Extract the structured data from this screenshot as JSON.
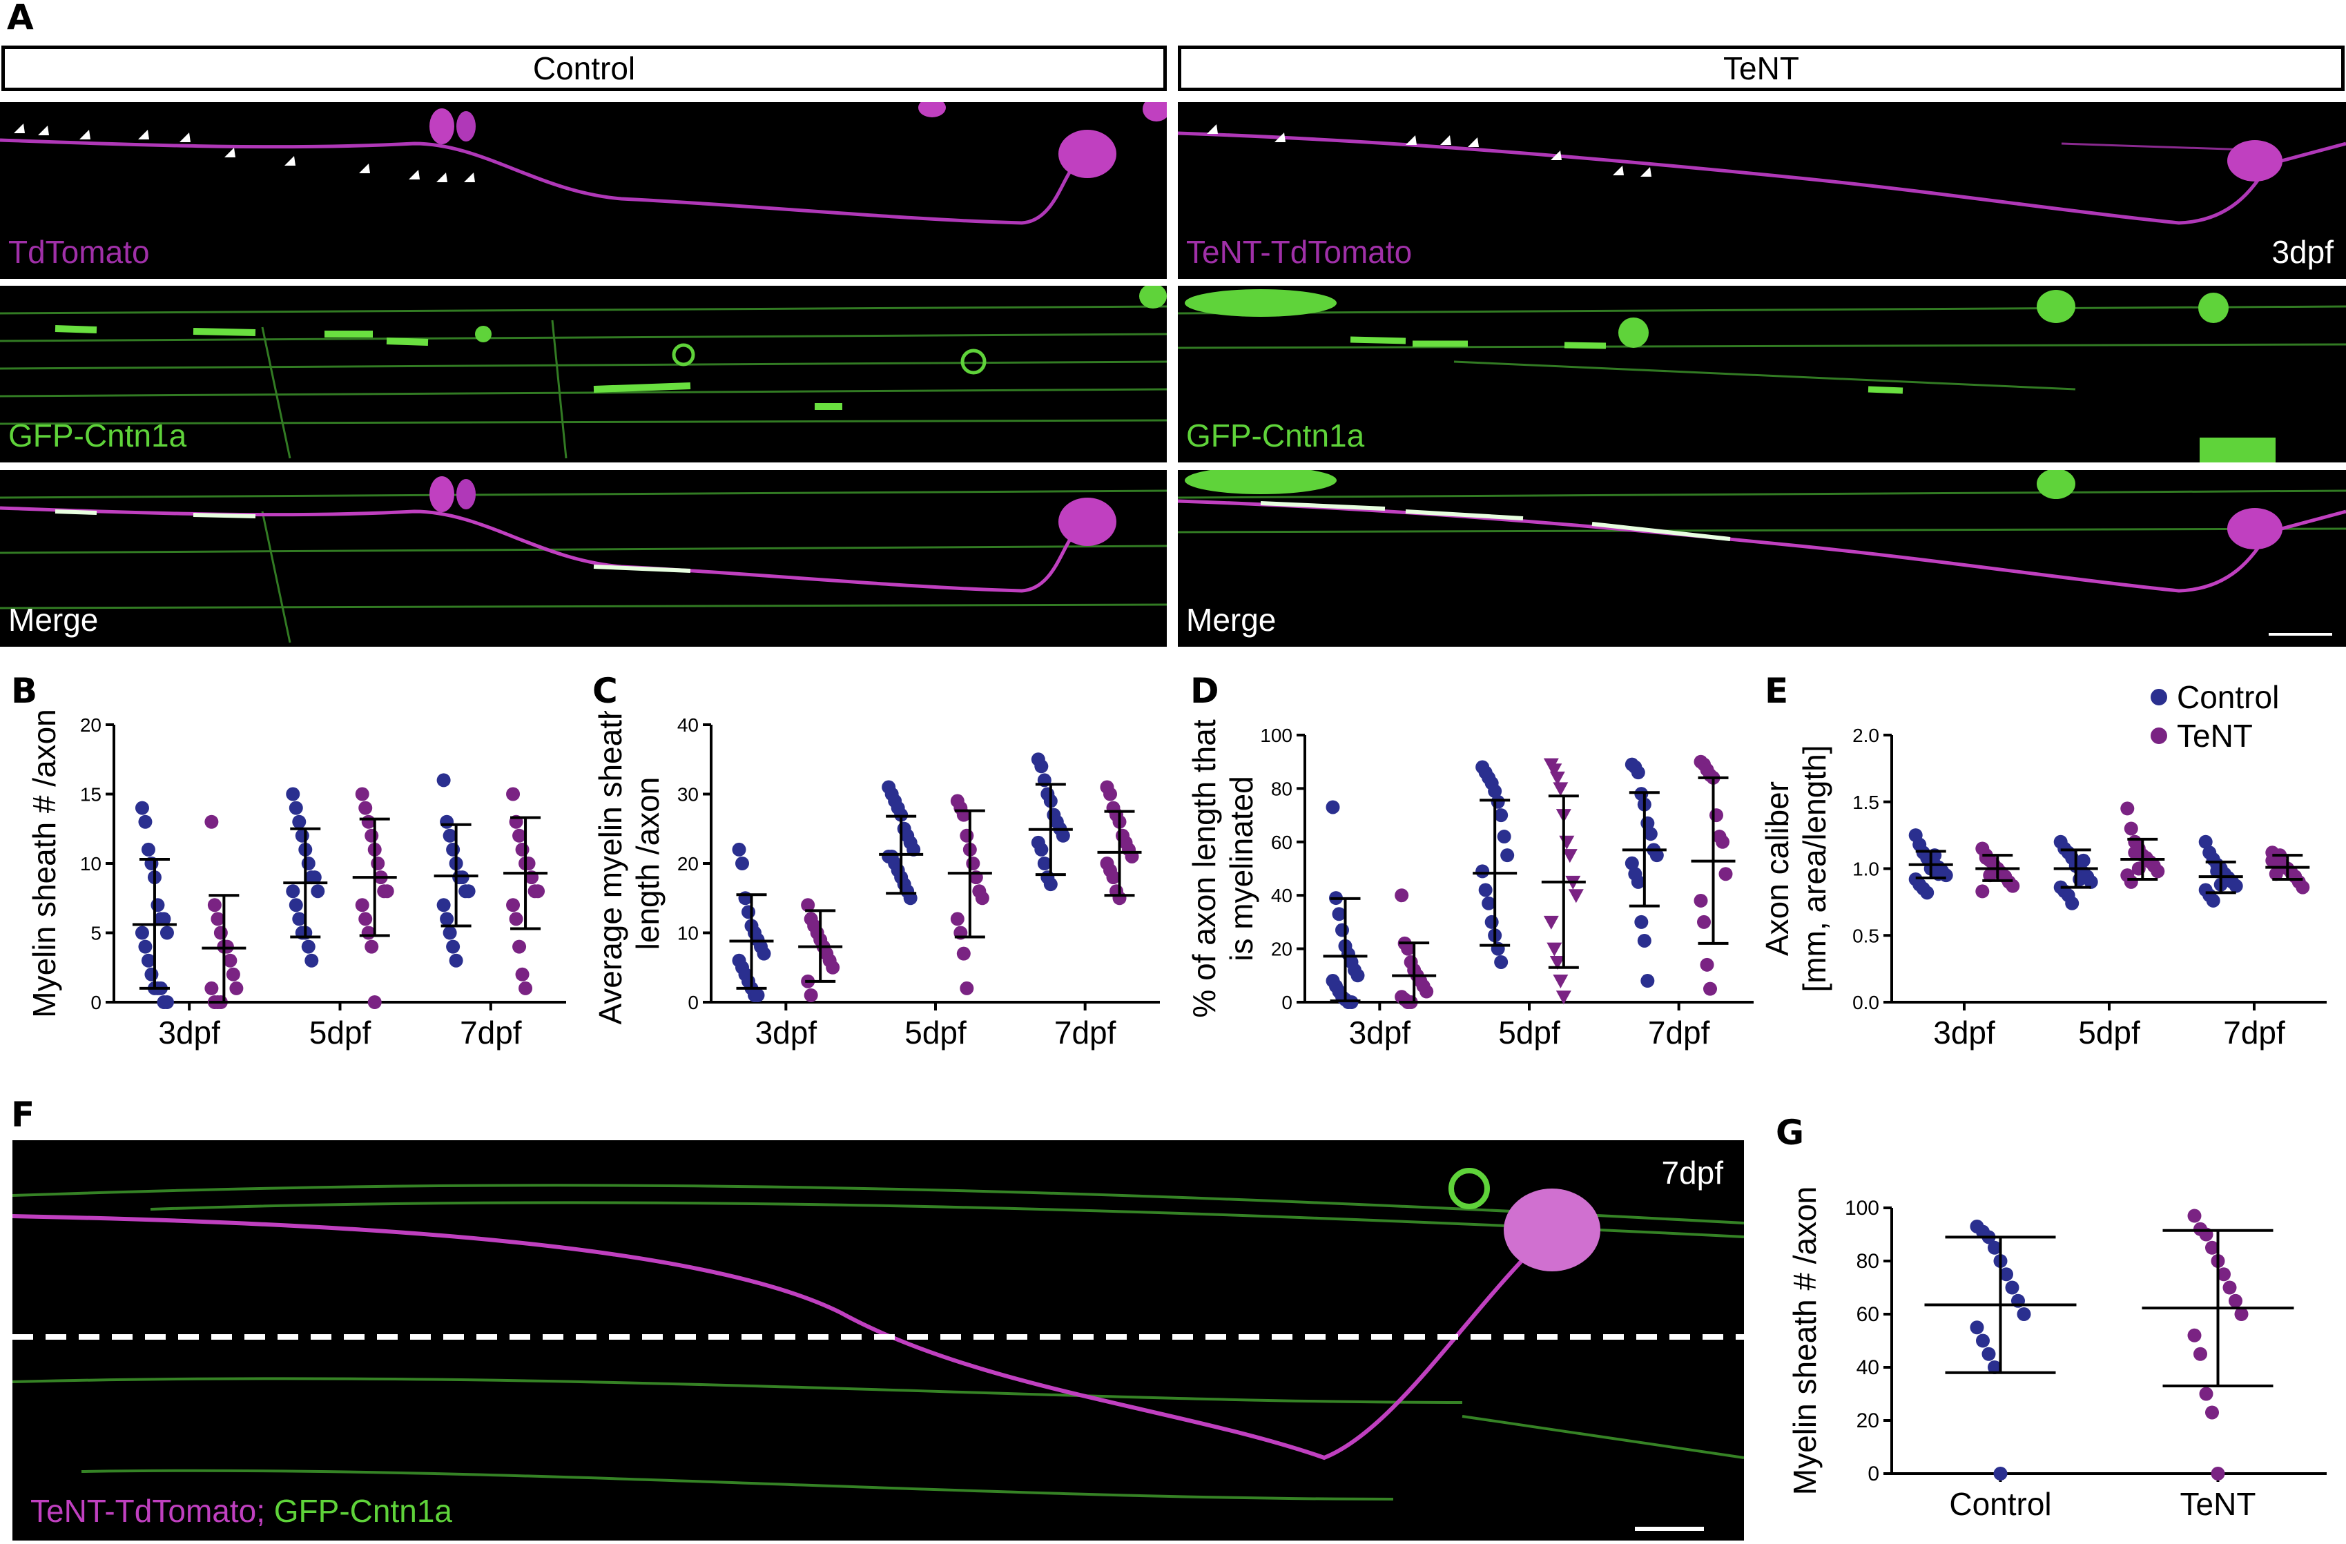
{
  "panels": {
    "A": "A",
    "B": "B",
    "C": "C",
    "D": "D",
    "E": "E",
    "F": "F",
    "G": "G"
  },
  "panelA": {
    "headers": {
      "control": "Control",
      "tent": "TeNT"
    },
    "labels": {
      "tdtomato": "TdTomato",
      "tent_tdtomato": "TeNT-TdTomato",
      "gfp": "GFP-Cntn1a",
      "merge": "Merge",
      "age": "3dpf"
    }
  },
  "panelF": {
    "age": "7dpf",
    "label_tent": "TeNT-TdTomato;",
    "label_gfp": "GFP-Cntn1a"
  },
  "legend": {
    "control": "Control",
    "tent": "TeNT"
  },
  "colors": {
    "control": "#2a2f8f",
    "tent": "#7a2383",
    "magenta": "#c040c0",
    "green": "#5fd33a"
  },
  "chart_data": [
    {
      "id": "B",
      "type": "scatter",
      "ylabel": "Myelin sheath # /axon",
      "yticks": [
        "0",
        "5",
        "10",
        "15",
        "20"
      ],
      "ylim": [
        0,
        20
      ],
      "categories": [
        "3dpf",
        "5dpf",
        "7dpf"
      ],
      "series": [
        {
          "name": "Control",
          "groups": [
            {
              "mean": 5.6,
              "low": 1.0,
              "high": 10.3,
              "points": [
                14,
                13,
                11,
                10,
                9,
                7,
                6,
                6,
                5,
                5,
                4,
                3,
                2,
                1,
                1,
                1,
                0,
                0
              ]
            },
            {
              "mean": 8.6,
              "low": 4.7,
              "high": 12.5,
              "points": [
                15,
                14,
                13,
                12,
                11,
                10,
                9,
                9,
                8,
                8,
                7,
                6,
                5,
                5,
                4,
                3
              ]
            },
            {
              "mean": 9.1,
              "low": 5.5,
              "high": 12.8,
              "points": [
                16,
                13,
                12,
                11,
                10,
                9,
                9,
                8,
                8,
                7,
                6,
                5,
                4,
                3
              ]
            }
          ]
        },
        {
          "name": "TeNT",
          "groups": [
            {
              "mean": 3.9,
              "low": 0.0,
              "high": 7.7,
              "points": [
                13,
                7,
                6,
                5,
                4,
                4,
                3,
                2,
                1,
                1,
                0,
                0,
                0
              ]
            },
            {
              "mean": 9.0,
              "low": 4.8,
              "high": 13.2,
              "points": [
                15,
                14,
                13,
                12,
                11,
                10,
                9,
                8,
                8,
                7,
                6,
                5,
                4,
                0
              ]
            },
            {
              "mean": 9.3,
              "low": 5.3,
              "high": 13.3,
              "points": [
                15,
                13,
                12,
                11,
                10,
                10,
                9,
                8,
                8,
                7,
                6,
                4,
                2,
                1
              ]
            }
          ]
        }
      ]
    },
    {
      "id": "C",
      "type": "scatter",
      "ylabel": [
        "Average myelin sheath",
        "length /axon"
      ],
      "yticks": [
        "0",
        "10",
        "20",
        "30",
        "40"
      ],
      "ylim": [
        0,
        40
      ],
      "categories": [
        "3dpf",
        "5dpf",
        "7dpf"
      ],
      "series": [
        {
          "name": "Control",
          "groups": [
            {
              "mean": 8.8,
              "low": 2.0,
              "high": 15.5,
              "points": [
                22,
                20,
                15,
                13,
                11,
                10,
                9,
                8,
                7,
                6,
                5,
                4,
                3,
                2,
                1,
                1
              ]
            },
            {
              "mean": 21.3,
              "low": 15.7,
              "high": 26.8,
              "points": [
                31,
                30,
                29,
                28,
                27,
                25,
                24,
                23,
                22,
                21,
                21,
                20,
                19,
                18,
                17,
                16,
                15
              ]
            },
            {
              "mean": 24.9,
              "low": 18.4,
              "high": 31.4,
              "points": [
                35,
                34,
                32,
                30,
                29,
                27,
                26,
                25,
                24,
                23,
                22,
                20,
                18,
                17
              ]
            }
          ]
        },
        {
          "name": "TeNT",
          "groups": [
            {
              "mean": 8.0,
              "low": 3.0,
              "high": 13.2,
              "points": [
                14,
                12,
                11,
                10,
                9,
                8,
                7,
                6,
                5,
                3,
                1
              ]
            },
            {
              "mean": 18.6,
              "low": 9.4,
              "high": 27.6,
              "points": [
                29,
                28,
                27,
                24,
                22,
                20,
                18,
                16,
                15,
                12,
                10,
                7,
                2
              ]
            },
            {
              "mean": 21.6,
              "low": 15.4,
              "high": 27.5,
              "points": [
                31,
                30,
                28,
                27,
                26,
                24,
                23,
                22,
                21,
                20,
                19,
                18,
                16,
                15
              ]
            }
          ]
        }
      ]
    },
    {
      "id": "D",
      "type": "scatter",
      "ylabel": [
        "% of axon length that",
        "is myelinated"
      ],
      "yticks": [
        "0",
        "20",
        "40",
        "60",
        "80",
        "100"
      ],
      "ylim": [
        0,
        100
      ],
      "categories": [
        "3dpf",
        "5dpf",
        "7dpf"
      ],
      "series": [
        {
          "name": "Control",
          "groups": [
            {
              "mean": 17.2,
              "low": 0.5,
              "high": 38.8,
              "points": [
                73,
                39,
                33,
                27,
                21,
                18,
                15,
                12,
                10,
                8,
                6,
                4,
                2,
                1,
                0,
                0
              ]
            },
            {
              "mean": 48.3,
              "low": 21.3,
              "high": 75.6,
              "points": [
                88,
                86,
                84,
                82,
                79,
                75,
                70,
                62,
                55,
                49,
                42,
                37,
                30,
                25,
                20,
                15
              ]
            },
            {
              "mean": 57.0,
              "low": 36.0,
              "high": 78.5,
              "points": [
                89,
                88,
                86,
                78,
                74,
                67,
                63,
                57,
                55,
                52,
                48,
                45,
                30,
                23,
                8
              ]
            }
          ]
        },
        {
          "name": "TeNT",
          "marker_groups": [
            "circle",
            "triangle",
            "circle"
          ],
          "groups": [
            {
              "mean": 9.9,
              "low": 0.0,
              "high": 22.2,
              "points": [
                40,
                22,
                20,
                15,
                12,
                10,
                8,
                6,
                4,
                2,
                1,
                0,
                0
              ]
            },
            {
              "mean": 45.0,
              "low": 13.0,
              "high": 77.2,
              "points": [
                89,
                87,
                84,
                80,
                70,
                60,
                55,
                45,
                40,
                30,
                20,
                15,
                8,
                2
              ]
            },
            {
              "mean": 52.8,
              "low": 22.0,
              "high": 84.0,
              "points": [
                90,
                89,
                87,
                85,
                84,
                70,
                62,
                60,
                48,
                38,
                30,
                14,
                5
              ]
            }
          ]
        }
      ]
    },
    {
      "id": "E",
      "type": "scatter",
      "ylabel": [
        "Axon caliber",
        "[mm, area/length]"
      ],
      "yticks": [
        "0.0",
        "0.5",
        "1.0",
        "1.5",
        "2.0"
      ],
      "ylim": [
        0,
        2.0
      ],
      "categories": [
        "3dpf",
        "5dpf",
        "7dpf"
      ],
      "series": [
        {
          "name": "Control",
          "groups": [
            {
              "mean": 1.03,
              "low": 0.93,
              "high": 1.13,
              "points": [
                1.25,
                1.18,
                1.12,
                1.08,
                1.05,
                1.03,
                1.01,
                0.98,
                0.95,
                0.92,
                0.88,
                0.85,
                0.82,
                1.0,
                1.1,
                0.96
              ]
            },
            {
              "mean": 1.0,
              "low": 0.86,
              "high": 1.14,
              "points": [
                1.2,
                1.15,
                1.12,
                1.08,
                1.04,
                1.0,
                0.97,
                0.94,
                0.9,
                0.86,
                0.83,
                0.8,
                0.74,
                1.02,
                0.92,
                1.06
              ]
            },
            {
              "mean": 0.94,
              "low": 0.82,
              "high": 1.05,
              "points": [
                1.2,
                1.12,
                1.07,
                1.03,
                1.0,
                0.96,
                0.93,
                0.9,
                0.87,
                0.84,
                0.8,
                0.76,
                0.98,
                0.88
              ]
            }
          ]
        },
        {
          "name": "TeNT",
          "groups": [
            {
              "mean": 1.0,
              "low": 0.91,
              "high": 1.1,
              "points": [
                1.15,
                1.1,
                1.06,
                1.03,
                1.0,
                0.97,
                0.94,
                0.9,
                0.87,
                0.83,
                1.08,
                0.95
              ]
            },
            {
              "mean": 1.07,
              "low": 0.92,
              "high": 1.22,
              "points": [
                1.45,
                1.3,
                1.2,
                1.15,
                1.1,
                1.08,
                1.05,
                1.02,
                0.98,
                0.95,
                0.9,
                1.12,
                1.0
              ]
            },
            {
              "mean": 1.01,
              "low": 0.92,
              "high": 1.1,
              "points": [
                1.12,
                1.08,
                1.05,
                1.02,
                1.0,
                0.97,
                0.94,
                0.9,
                0.86,
                1.06,
                0.96,
                1.1
              ]
            }
          ]
        }
      ]
    },
    {
      "id": "G",
      "type": "scatter",
      "ylabel": "Myelin sheath # /axon",
      "yticks": [
        "0",
        "20",
        "40",
        "60",
        "80",
        "100"
      ],
      "ylim": [
        0,
        100
      ],
      "categories": [
        "Control",
        "TeNT"
      ],
      "series": [
        {
          "name": "Control",
          "groups": [
            {
              "mean": 63.5,
              "low": 38.0,
              "high": 89.0,
              "points": [
                93,
                91,
                89,
                85,
                80,
                75,
                70,
                65,
                60,
                55,
                50,
                45,
                40,
                0
              ]
            }
          ]
        },
        {
          "name": "TeNT",
          "groups": [
            {
              "mean": 62.3,
              "low": 33.0,
              "high": 91.5,
              "points": [
                97,
                92,
                90,
                85,
                80,
                75,
                70,
                65,
                60,
                52,
                45,
                30,
                23,
                0
              ]
            }
          ]
        }
      ]
    }
  ]
}
